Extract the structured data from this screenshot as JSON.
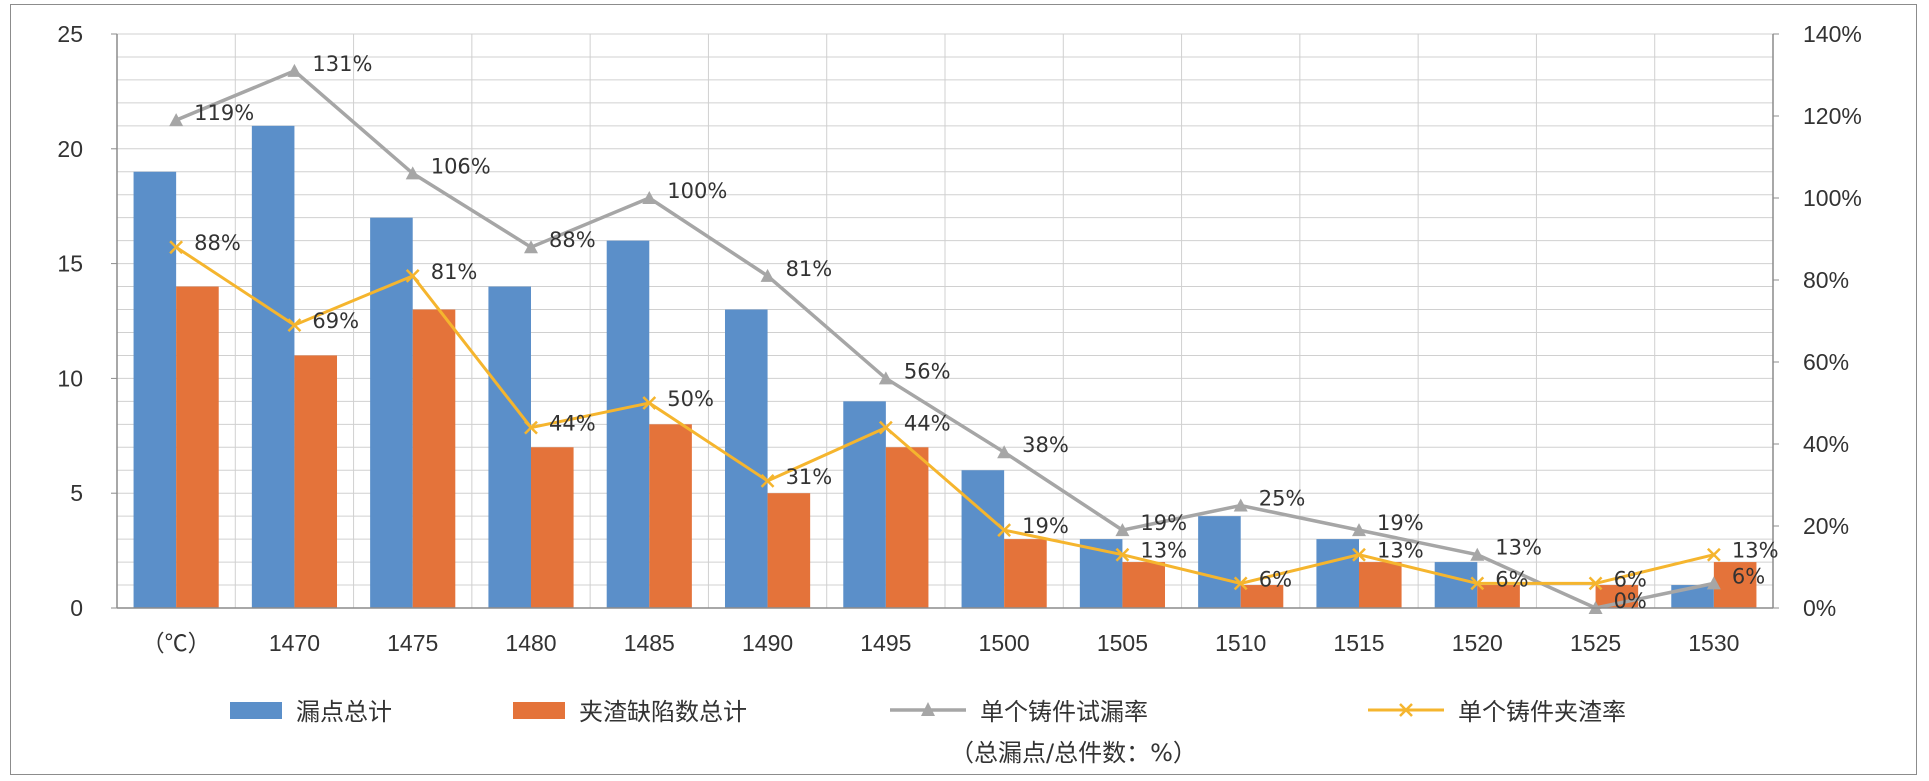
{
  "chart_data": {
    "type": "bar",
    "categories": [
      "（℃）",
      "1470",
      "1475",
      "1480",
      "1485",
      "1490",
      "1495",
      "1500",
      "1505",
      "1510",
      "1515",
      "1520",
      "1525",
      "1530"
    ],
    "left_axis": {
      "ylim": [
        0,
        25
      ],
      "ticks": [
        "0",
        "5",
        "10",
        "15",
        "20",
        "25"
      ]
    },
    "right_axis": {
      "ylim": [
        0,
        140
      ],
      "ticks": [
        "0%",
        "20%",
        "40%",
        "60%",
        "80%",
        "100%",
        "120%",
        "140%"
      ]
    },
    "grid": true,
    "legend_position": "bottom",
    "bar_series": [
      {
        "name": "漏点总计",
        "color": "#5b8fc9",
        "values": [
          19,
          21,
          17,
          14,
          16,
          13,
          9,
          6,
          3,
          4,
          3,
          2,
          0,
          1
        ]
      },
      {
        "name": "夹渣缺陷数总计",
        "color": "#e4733a",
        "values": [
          14,
          11,
          13,
          7,
          8,
          5,
          7,
          3,
          2,
          1,
          2,
          1,
          1,
          2
        ]
      }
    ],
    "line_series": [
      {
        "name": "单个铸件试漏率",
        "name_line2": "（总漏点/总件数：%）",
        "color": "#a6a6a6",
        "marker": "triangle",
        "values": [
          119,
          131,
          106,
          88,
          100,
          81,
          56,
          38,
          19,
          25,
          19,
          13,
          0,
          6
        ],
        "labels": [
          "119%",
          "131%",
          "106%",
          "88%",
          "100%",
          "81%",
          "56%",
          "38%",
          "19%",
          "25%",
          "19%",
          "13%",
          "0%",
          "6%"
        ]
      },
      {
        "name": "单个铸件夹渣率",
        "color": "#f5b52e",
        "marker": "x",
        "values": [
          88,
          69,
          81,
          44,
          50,
          31,
          44,
          19,
          13,
          6,
          13,
          6,
          6,
          13
        ],
        "labels": [
          "88%",
          "69%",
          "81%",
          "44%",
          "50%",
          "31%",
          "44%",
          "19%",
          "13%",
          "6%",
          "13%",
          "6%",
          "6%",
          "13%"
        ]
      }
    ]
  }
}
